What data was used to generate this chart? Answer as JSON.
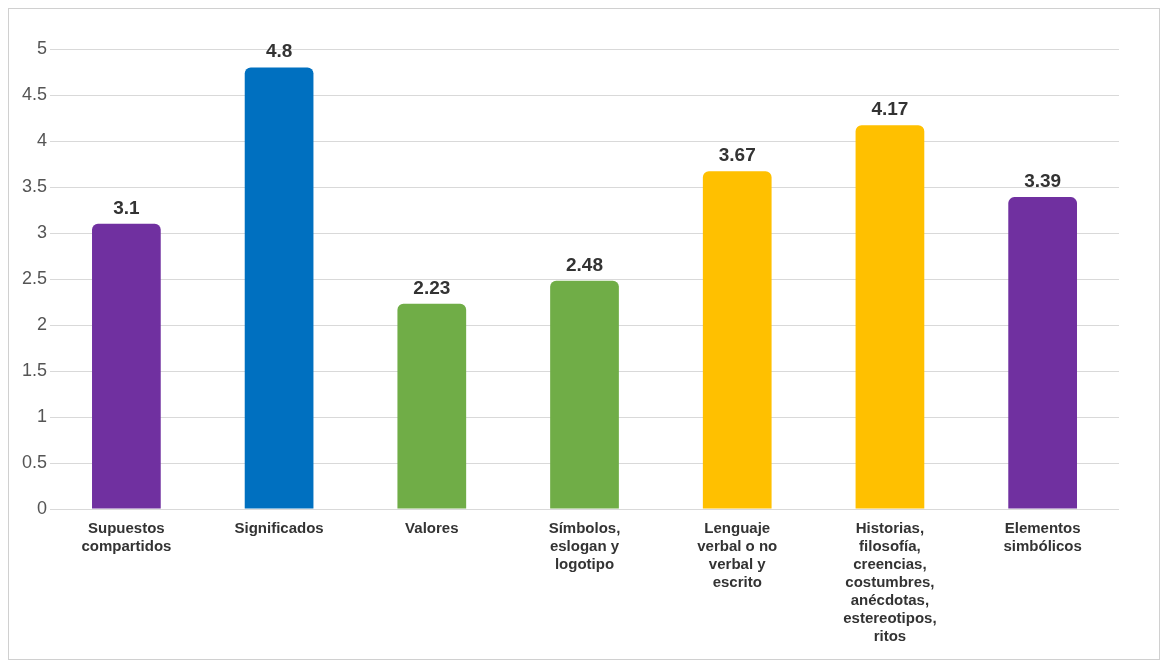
{
  "chart_data": {
    "type": "bar",
    "categories": [
      "Supuestos compartidos",
      "Significados",
      "Valores",
      "Símbolos, eslogan y logotipo",
      "Lenguaje verbal o no verbal y escrito",
      "Historias, filosofía, creencias, costumbres, anécdotas, estereotipos, ritos",
      "Elementos simbólicos"
    ],
    "values": [
      3.1,
      4.8,
      2.23,
      2.48,
      3.67,
      4.17,
      3.39
    ],
    "colors": [
      "#7030a0",
      "#0070c0",
      "#70ad47",
      "#70ad47",
      "#ffc000",
      "#ffc000",
      "#7030a0"
    ],
    "ylim": [
      0,
      5
    ],
    "yticks": [
      0,
      0.5,
      1,
      1.5,
      2,
      2.5,
      3,
      3.5,
      4,
      4.5,
      5
    ],
    "grid": "y",
    "data_labels": true,
    "legend": false
  }
}
